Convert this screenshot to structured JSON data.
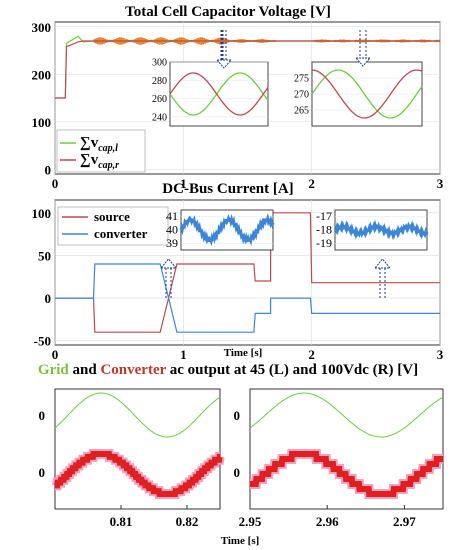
{
  "colors": {
    "green": "#6ccf3c",
    "red": "#c1484b",
    "blue": "#3c86d8",
    "orange": "#f08a24",
    "fat_red": "#e02020",
    "pink": "#f0a0c0",
    "title_green": "#7fbf3f",
    "title_red": "#c0392b"
  },
  "icons": [
    "dotted-arrow-down-icon",
    "dotted-arrow-up-icon"
  ],
  "chart_data": [
    {
      "type": "line",
      "title": "Total Cell Capacitor Voltage [V]",
      "xlim": [
        0,
        3
      ],
      "ylim": [
        -10,
        310
      ],
      "x_ticks": [
        "0",
        "1",
        "2",
        "3"
      ],
      "y_ticks": [
        "0",
        "100",
        "200",
        "300"
      ],
      "legend": {
        "position": "bottom-left",
        "entries": [
          "∑v",
          "∑v"
        ],
        "subscripts": [
          "cap,l",
          "cap,r"
        ]
      },
      "series": [
        {
          "color": "green",
          "x": [
            0,
            0.08,
            0.09,
            0.18,
            0.22,
            0.3,
            3.0
          ],
          "y": [
            150,
            150,
            265,
            280,
            268,
            270,
            270
          ]
        },
        {
          "color": "red",
          "x": [
            0,
            0.08,
            0.09,
            0.18,
            0.22,
            0.3,
            3.0
          ],
          "y": [
            150,
            150,
            258,
            268,
            270,
            270,
            270
          ]
        }
      ],
      "insets": [
        {
          "xlim": [
            0,
            1
          ],
          "ylim": [
            230,
            300
          ],
          "y_ticks": [
            "240",
            "260",
            "280",
            "300"
          ],
          "series": [
            {
              "color": "green",
              "shape": "sine",
              "mid": 265,
              "amp": 23,
              "phase": 180
            },
            {
              "color": "red",
              "shape": "sine",
              "mid": 265,
              "amp": 23,
              "phase": 0
            }
          ]
        },
        {
          "xlim": [
            0,
            1
          ],
          "ylim": [
            260,
            280
          ],
          "y_ticks": [
            "265",
            "270",
            "275"
          ],
          "series": [
            {
              "color": "green",
              "shape": "sine",
              "mid": 270,
              "amp": 7.5,
              "phase": 0
            },
            {
              "color": "red",
              "shape": "sine",
              "mid": 270,
              "amp": 7.5,
              "phase": 90
            }
          ]
        }
      ]
    },
    {
      "type": "line",
      "title": "DC-Bus Current [A]",
      "xlabel": "Time [s]",
      "xlim": [
        0,
        3
      ],
      "ylim": [
        -55,
        115
      ],
      "x_ticks": [
        "0",
        "1",
        "2",
        "3"
      ],
      "y_ticks": [
        "-50",
        "0",
        "50",
        "100"
      ],
      "legend": {
        "position": "top-left",
        "entries": [
          "source",
          "converter"
        ]
      },
      "series": [
        {
          "name": "source",
          "color": "red",
          "x": [
            0,
            0.3,
            0.31,
            0.82,
            0.95,
            1.35,
            1.36,
            1.55,
            1.56,
            1.68,
            1.68,
            1.99,
            2.0,
            3.0
          ],
          "y": [
            0,
            0,
            -40,
            -40,
            40,
            40,
            40,
            40,
            20,
            20,
            100,
            100,
            18,
            18
          ]
        },
        {
          "name": "converter",
          "color": "blue",
          "x": [
            0,
            0.3,
            0.31,
            0.82,
            0.95,
            1.35,
            1.36,
            1.55,
            1.56,
            1.68,
            1.68,
            1.99,
            2.0,
            3.0
          ],
          "y": [
            0,
            0,
            40,
            40,
            -40,
            -40,
            -40,
            -40,
            -18,
            -18,
            0,
            0,
            -18,
            -18
          ]
        }
      ],
      "insets": [
        {
          "ylim": [
            38.5,
            41.5
          ],
          "y_ticks": [
            "41",
            "40",
            "39"
          ],
          "series": [
            {
              "color": "blue",
              "shape": "wave",
              "mid": 40
            }
          ]
        },
        {
          "ylim": [
            -19.5,
            -16.5
          ],
          "y_ticks": [
            "-17",
            "-18",
            "-19"
          ],
          "series": [
            {
              "color": "blue",
              "shape": "flat",
              "mid": -18
            }
          ]
        }
      ]
    },
    {
      "type": "line",
      "title_parts": [
        "Grid",
        " and ",
        "Converter",
        " ac output at 45 (L) and 100Vdc (R) [V]"
      ],
      "xlabel": "Time [s]",
      "panels": [
        {
          "xlim": [
            0.8,
            0.825
          ],
          "x_ticks": [
            "0.81",
            "0.82"
          ],
          "x_tick_values": [
            0.81,
            0.82
          ],
          "y_ticks": [
            "0",
            "0"
          ],
          "series": [
            {
              "name": "Grid",
              "color": "green",
              "shape": "sine"
            },
            {
              "name": "Converter",
              "color": "fat_red",
              "shape": "staircase",
              "levels": 7
            }
          ]
        },
        {
          "xlim": [
            2.95,
            2.975
          ],
          "x_ticks": [
            "2.95",
            "2.96",
            "2.97"
          ],
          "x_tick_values": [
            2.95,
            2.96,
            2.97
          ],
          "y_ticks": [
            "0",
            "0"
          ],
          "series": [
            {
              "name": "Grid",
              "color": "green",
              "shape": "sine"
            },
            {
              "name": "Converter",
              "color": "fat_red",
              "shape": "staircase",
              "levels": 4
            }
          ]
        }
      ]
    }
  ]
}
